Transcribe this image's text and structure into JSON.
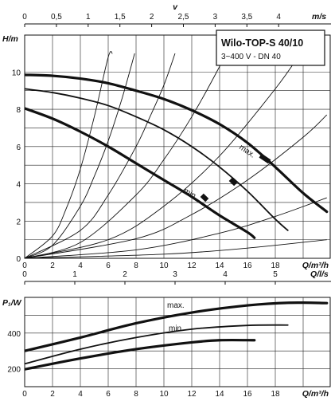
{
  "title": "Wilo-TOP-S 40/10",
  "subtitle": "3~400 V - DN 40",
  "chart_data": [
    {
      "type": "line",
      "name_top_axis": "v",
      "top_axis_unit": "m/s",
      "top_axis_ticks": [
        "0",
        "0,5",
        "1",
        "1,5",
        "2",
        "2,5",
        "3",
        "3,5",
        "4"
      ],
      "top_axis_values": [
        0,
        0.5,
        1,
        1.5,
        2,
        2.5,
        3,
        3.5,
        4
      ],
      "xlabel": "Q/m³/h",
      "ylabel": "H/m",
      "xlim": [
        0,
        22
      ],
      "ylim": [
        0,
        11
      ],
      "x_ticks": [
        "0",
        "2",
        "4",
        "6",
        "8",
        "10",
        "12",
        "14",
        "16",
        "18"
      ],
      "y_ticks": [
        "0",
        "2",
        "4",
        "6",
        "8",
        "10"
      ],
      "grid": true,
      "series": [
        {
          "name": "max.",
          "points": [
            [
              0,
              9.85
            ],
            [
              2,
              9.8
            ],
            [
              4,
              9.65
            ],
            [
              6,
              9.4
            ],
            [
              8,
              9.0
            ],
            [
              10,
              8.55
            ],
            [
              12,
              7.95
            ],
            [
              14,
              7.2
            ],
            [
              16,
              6.2
            ],
            [
              18,
              4.9
            ],
            [
              20,
              3.5
            ],
            [
              21.7,
              2.5
            ]
          ]
        },
        {
          "points": [
            [
              0,
              9.1
            ],
            [
              2,
              8.9
            ],
            [
              4,
              8.6
            ],
            [
              6,
              8.2
            ],
            [
              8,
              7.6
            ],
            [
              10,
              6.9
            ],
            [
              12,
              6.0
            ],
            [
              14,
              4.9
            ],
            [
              16,
              3.6
            ],
            [
              18,
              2.1
            ],
            [
              18.9,
              1.5
            ]
          ]
        },
        {
          "name": "min.",
          "points": [
            [
              0,
              8.05
            ],
            [
              2,
              7.5
            ],
            [
              4,
              6.8
            ],
            [
              6,
              6.0
            ],
            [
              8,
              5.1
            ],
            [
              10,
              4.2
            ],
            [
              12,
              3.3
            ],
            [
              14,
              2.3
            ],
            [
              16,
              1.4
            ],
            [
              16.5,
              1.1
            ]
          ]
        }
      ],
      "system_curves": [
        {
          "points": [
            [
              0,
              0
            ],
            [
              2,
              1.2
            ],
            [
              3,
              2.7
            ],
            [
              4,
              4.8
            ],
            [
              5,
              7.6
            ],
            [
              6,
              10.8
            ],
            [
              6.3,
              11
            ]
          ]
        },
        {
          "points": [
            [
              0,
              0
            ],
            [
              2,
              0.7
            ],
            [
              4,
              2.8
            ],
            [
              5,
              4.4
            ],
            [
              6,
              6.3
            ],
            [
              7,
              8.6
            ],
            [
              7.9,
              11
            ]
          ]
        },
        {
          "points": [
            [
              0,
              0
            ],
            [
              4,
              1.5
            ],
            [
              6,
              3.4
            ],
            [
              8,
              6.0
            ],
            [
              9,
              7.6
            ],
            [
              10,
              9.3
            ],
            [
              10.8,
              11
            ]
          ]
        },
        {
          "points": [
            [
              0,
              0
            ],
            [
              4,
              0.85
            ],
            [
              8,
              3.4
            ],
            [
              10,
              5.3
            ],
            [
              12,
              7.6
            ],
            [
              14,
              10.3
            ],
            [
              14.4,
              11
            ]
          ]
        },
        {
          "points": [
            [
              0,
              0
            ],
            [
              6,
              1.0
            ],
            [
              10,
              2.8
            ],
            [
              14,
              5.5
            ],
            [
              18,
              9.1
            ],
            [
              19.8,
              11
            ]
          ]
        },
        {
          "points": [
            [
              0,
              0
            ],
            [
              8,
              1.05
            ],
            [
              12,
              2.35
            ],
            [
              16,
              4.2
            ],
            [
              20,
              6.5
            ],
            [
              21.7,
              7.7
            ]
          ]
        },
        {
          "points": [
            [
              0,
              0
            ],
            [
              8,
              0.45
            ],
            [
              14,
              1.35
            ],
            [
              18,
              2.25
            ],
            [
              21.7,
              3.25
            ]
          ]
        },
        {
          "points": [
            [
              0,
              0
            ],
            [
              10,
              0.22
            ],
            [
              16,
              0.55
            ],
            [
              21.7,
              1.0
            ]
          ]
        }
      ]
    },
    {
      "type": "line",
      "top_axis_unit": "Q/l/s",
      "top_axis_ticks": [
        "0",
        "1",
        "2",
        "3",
        "4",
        "5"
      ],
      "top_axis_values": [
        0,
        1,
        2,
        3,
        4,
        5
      ],
      "xlabel": "Q/m³/h",
      "ylabel": "P₁/W",
      "xlim": [
        0,
        22
      ],
      "ylim": [
        100,
        600
      ],
      "x_ticks": [
        "0",
        "2",
        "4",
        "6",
        "8",
        "10",
        "12",
        "14",
        "16",
        "18"
      ],
      "y_ticks": [
        "200",
        "400"
      ],
      "grid": true,
      "series": [
        {
          "name": "max.",
          "points": [
            [
              0,
              300
            ],
            [
              4,
              375
            ],
            [
              8,
              455
            ],
            [
              12,
              515
            ],
            [
              16,
              555
            ],
            [
              19,
              570
            ],
            [
              21.7,
              568
            ]
          ]
        },
        {
          "points": [
            [
              0,
              228
            ],
            [
              4,
              310
            ],
            [
              8,
              375
            ],
            [
              12,
              422
            ],
            [
              16,
              443
            ],
            [
              18.9,
              445
            ]
          ]
        },
        {
          "name": "min.",
          "points": [
            [
              0,
              197
            ],
            [
              4,
              258
            ],
            [
              8,
              310
            ],
            [
              12,
              348
            ],
            [
              14,
              360
            ],
            [
              16.5,
              360
            ]
          ]
        }
      ]
    }
  ]
}
